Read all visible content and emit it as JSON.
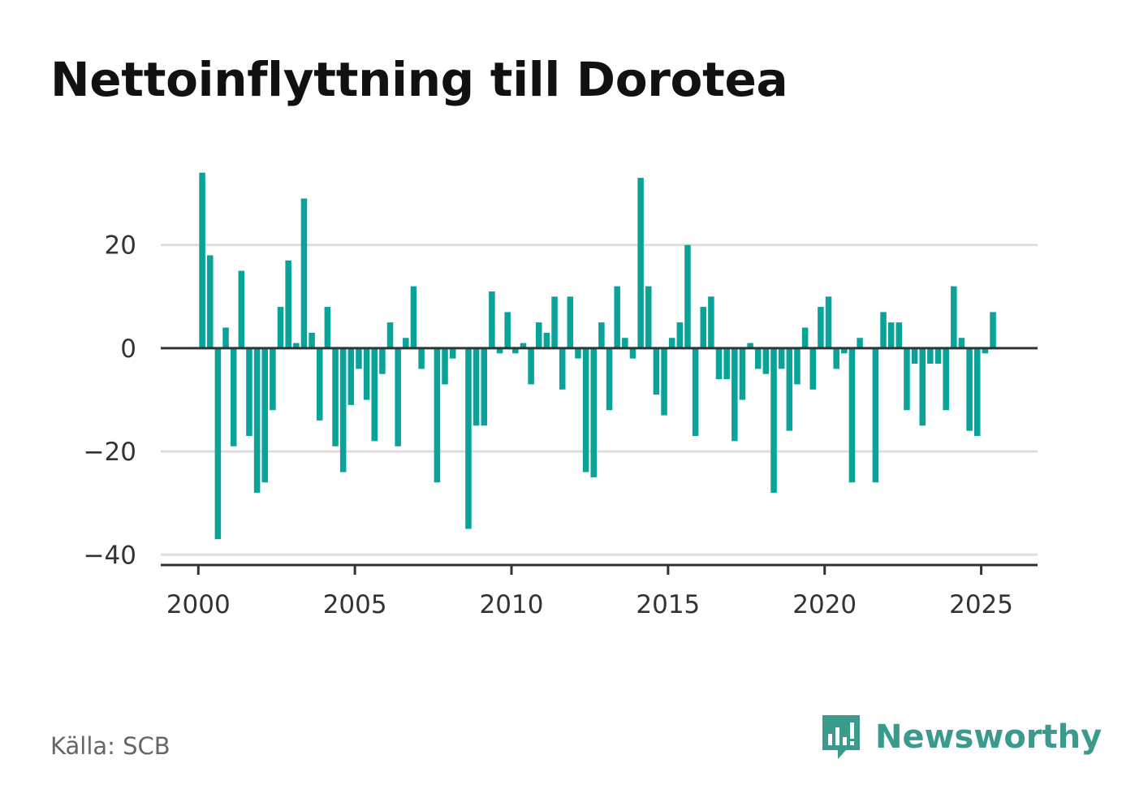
{
  "title": "Nettoinflyttning till Dorotea",
  "source": "Källa: SCB",
  "brand": {
    "name": "Newsworthy",
    "icon": "bar-chart-speech-bubble-icon",
    "color": "#3a9b8c"
  },
  "colors": {
    "bar": "#0aa399",
    "grid": "#dddddd",
    "axis": "#333333"
  },
  "chart_data": {
    "type": "bar",
    "title": "Nettoinflyttning till Dorotea",
    "xlabel": "",
    "ylabel": "",
    "x_ticks": [
      "2000",
      "2005",
      "2010",
      "2015",
      "2020",
      "2025"
    ],
    "y_ticks": [
      "20",
      "0",
      "−20",
      "−40"
    ],
    "ylim": [
      -42,
      36
    ],
    "xlim": [
      1998.8,
      2026.8
    ],
    "grid": "horizontal",
    "legend": "none",
    "series": [
      {
        "values": [
          {
            "x": 2000.125,
            "y": 34
          },
          {
            "x": 2000.375,
            "y": 18
          },
          {
            "x": 2000.625,
            "y": -37
          },
          {
            "x": 2000.875,
            "y": 4
          },
          {
            "x": 2001.125,
            "y": -19
          },
          {
            "x": 2001.375,
            "y": 15
          },
          {
            "x": 2001.625,
            "y": -17
          },
          {
            "x": 2001.875,
            "y": -28
          },
          {
            "x": 2002.125,
            "y": -26
          },
          {
            "x": 2002.375,
            "y": -12
          },
          {
            "x": 2002.625,
            "y": 8
          },
          {
            "x": 2002.875,
            "y": 17
          },
          {
            "x": 2003.125,
            "y": 1
          },
          {
            "x": 2003.375,
            "y": 29
          },
          {
            "x": 2003.625,
            "y": 3
          },
          {
            "x": 2003.875,
            "y": -14
          },
          {
            "x": 2004.125,
            "y": 8
          },
          {
            "x": 2004.375,
            "y": -19
          },
          {
            "x": 2004.625,
            "y": -24
          },
          {
            "x": 2004.875,
            "y": -11
          },
          {
            "x": 2005.125,
            "y": -4
          },
          {
            "x": 2005.375,
            "y": -10
          },
          {
            "x": 2005.625,
            "y": -18
          },
          {
            "x": 2005.875,
            "y": -5
          },
          {
            "x": 2006.125,
            "y": 5
          },
          {
            "x": 2006.375,
            "y": -19
          },
          {
            "x": 2006.625,
            "y": 2
          },
          {
            "x": 2006.875,
            "y": 12
          },
          {
            "x": 2007.125,
            "y": -4
          },
          {
            "x": 2007.375,
            "y": 0
          },
          {
            "x": 2007.625,
            "y": -26
          },
          {
            "x": 2007.875,
            "y": -7
          },
          {
            "x": 2008.125,
            "y": -2
          },
          {
            "x": 2008.375,
            "y": 0
          },
          {
            "x": 2008.625,
            "y": -35
          },
          {
            "x": 2008.875,
            "y": -15
          },
          {
            "x": 2009.125,
            "y": -15
          },
          {
            "x": 2009.375,
            "y": 11
          },
          {
            "x": 2009.625,
            "y": -1
          },
          {
            "x": 2009.875,
            "y": 7
          },
          {
            "x": 2010.125,
            "y": -1
          },
          {
            "x": 2010.375,
            "y": 1
          },
          {
            "x": 2010.625,
            "y": -7
          },
          {
            "x": 2010.875,
            "y": 5
          },
          {
            "x": 2011.125,
            "y": 3
          },
          {
            "x": 2011.375,
            "y": 10
          },
          {
            "x": 2011.625,
            "y": -8
          },
          {
            "x": 2011.875,
            "y": 10
          },
          {
            "x": 2012.125,
            "y": -2
          },
          {
            "x": 2012.375,
            "y": -24
          },
          {
            "x": 2012.625,
            "y": -25
          },
          {
            "x": 2012.875,
            "y": 5
          },
          {
            "x": 2013.125,
            "y": -12
          },
          {
            "x": 2013.375,
            "y": 12
          },
          {
            "x": 2013.625,
            "y": 2
          },
          {
            "x": 2013.875,
            "y": -2
          },
          {
            "x": 2014.125,
            "y": 33
          },
          {
            "x": 2014.375,
            "y": 12
          },
          {
            "x": 2014.625,
            "y": -9
          },
          {
            "x": 2014.875,
            "y": -13
          },
          {
            "x": 2015.125,
            "y": 2
          },
          {
            "x": 2015.375,
            "y": 5
          },
          {
            "x": 2015.625,
            "y": 20
          },
          {
            "x": 2015.875,
            "y": -17
          },
          {
            "x": 2016.125,
            "y": 8
          },
          {
            "x": 2016.375,
            "y": 10
          },
          {
            "x": 2016.625,
            "y": -6
          },
          {
            "x": 2016.875,
            "y": -6
          },
          {
            "x": 2017.125,
            "y": -18
          },
          {
            "x": 2017.375,
            "y": -10
          },
          {
            "x": 2017.625,
            "y": 1
          },
          {
            "x": 2017.875,
            "y": -4
          },
          {
            "x": 2018.125,
            "y": -5
          },
          {
            "x": 2018.375,
            "y": -28
          },
          {
            "x": 2018.625,
            "y": -4
          },
          {
            "x": 2018.875,
            "y": -16
          },
          {
            "x": 2019.125,
            "y": -7
          },
          {
            "x": 2019.375,
            "y": 4
          },
          {
            "x": 2019.625,
            "y": -8
          },
          {
            "x": 2019.875,
            "y": 8
          },
          {
            "x": 2020.125,
            "y": 10
          },
          {
            "x": 2020.375,
            "y": -4
          },
          {
            "x": 2020.625,
            "y": -1
          },
          {
            "x": 2020.875,
            "y": -26
          },
          {
            "x": 2021.125,
            "y": 2
          },
          {
            "x": 2021.375,
            "y": 0
          },
          {
            "x": 2021.625,
            "y": -26
          },
          {
            "x": 2021.875,
            "y": 7
          },
          {
            "x": 2022.125,
            "y": 5
          },
          {
            "x": 2022.375,
            "y": 5
          },
          {
            "x": 2022.625,
            "y": -12
          },
          {
            "x": 2022.875,
            "y": -3
          },
          {
            "x": 2023.125,
            "y": -15
          },
          {
            "x": 2023.375,
            "y": -3
          },
          {
            "x": 2023.625,
            "y": -3
          },
          {
            "x": 2023.875,
            "y": -12
          },
          {
            "x": 2024.125,
            "y": 12
          },
          {
            "x": 2024.375,
            "y": 2
          },
          {
            "x": 2024.625,
            "y": -16
          },
          {
            "x": 2024.875,
            "y": -17
          },
          {
            "x": 2025.125,
            "y": -1
          },
          {
            "x": 2025.375,
            "y": 7
          }
        ]
      }
    ]
  }
}
